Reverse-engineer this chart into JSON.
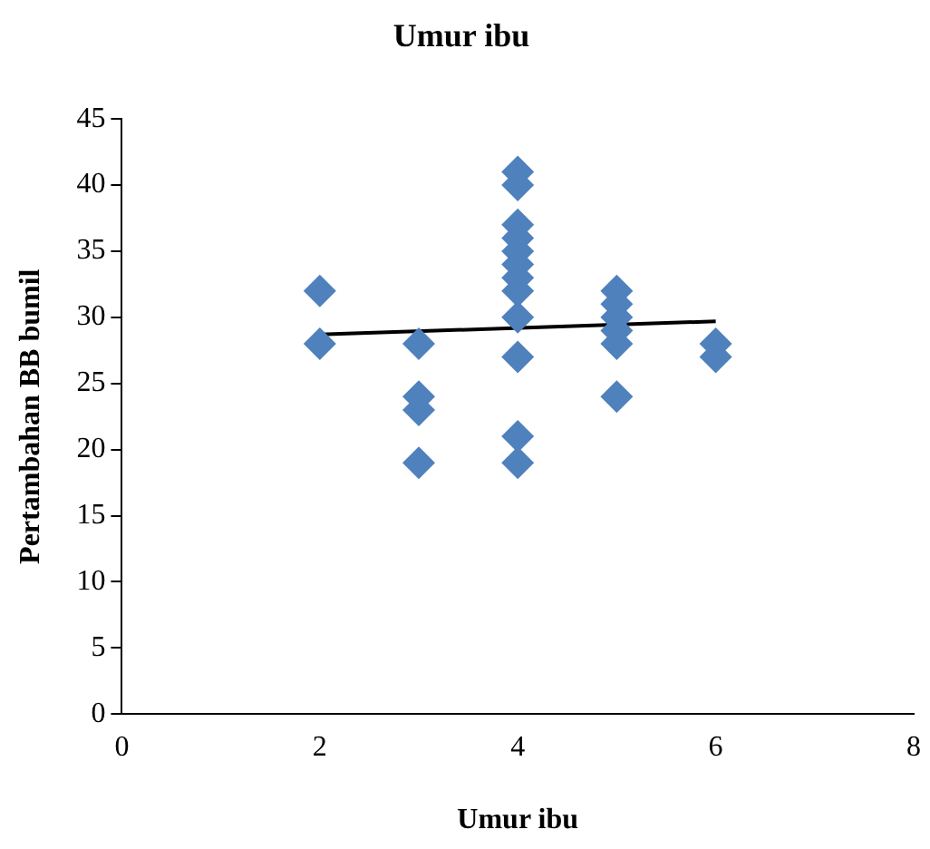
{
  "chart_data": {
    "type": "scatter",
    "title": "Umur ibu",
    "xlabel": "Umur ibu",
    "ylabel": "Pertambahan BB bumil",
    "xlim": [
      0,
      8
    ],
    "xticks": [
      0,
      2,
      4,
      6,
      8
    ],
    "ylim": [
      0,
      45
    ],
    "yticks": [
      0,
      5,
      10,
      15,
      20,
      25,
      30,
      35,
      40,
      45
    ],
    "grid": false,
    "legend": false,
    "marker": "diamond",
    "series": [
      {
        "color": "#4f81bd",
        "x": [
          2,
          2,
          3,
          3,
          3,
          3,
          4,
          4,
          4,
          4,
          4,
          4,
          4,
          4,
          4,
          4,
          4,
          4,
          5,
          5,
          5,
          5,
          5,
          5,
          6,
          6
        ],
        "values": [
          32,
          28,
          28,
          24,
          23,
          19,
          41,
          40,
          37,
          36,
          35,
          34,
          33,
          32,
          30,
          27,
          21,
          19,
          32,
          31,
          30,
          29,
          28,
          24,
          28,
          27
        ]
      },
      {
        "type": "line",
        "color": "#000000",
        "x": [
          2,
          6
        ],
        "values": [
          28.7,
          29.7
        ],
        "marker": "none",
        "line_style": "solid"
      }
    ]
  }
}
